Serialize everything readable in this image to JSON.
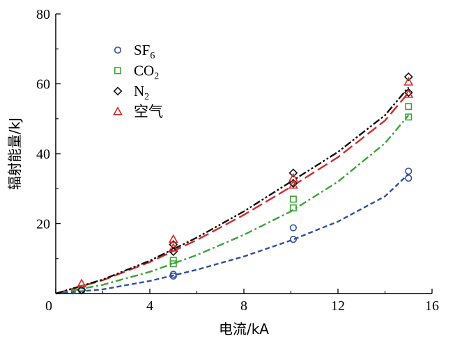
{
  "chart_data": {
    "type": "scatter",
    "title": "",
    "xlabel": "电流/kA",
    "ylabel": "辐射能量/kJ",
    "xlim": [
      0,
      16
    ],
    "ylim": [
      0,
      80
    ],
    "xticks": [
      "0",
      "4",
      "8",
      "12",
      "16"
    ],
    "yticks": [
      "20",
      "40",
      "60",
      "80"
    ],
    "grid": false,
    "legend_position": "top-left",
    "series": [
      {
        "name": "SF",
        "name_sub": "6",
        "marker": "circle",
        "color": "#2f4ea0",
        "line_style": "dashed",
        "points": [
          [
            1.1,
            0.8
          ],
          [
            5.0,
            5.0
          ],
          [
            5.0,
            5.5
          ],
          [
            10.1,
            15.5
          ],
          [
            10.1,
            18.8
          ],
          [
            15.0,
            33.0
          ],
          [
            15.0,
            35.0
          ]
        ],
        "fit": [
          [
            0,
            0
          ],
          [
            2,
            1.2
          ],
          [
            4,
            3.6
          ],
          [
            6,
            6.8
          ],
          [
            8,
            10.6
          ],
          [
            10,
            15.2
          ],
          [
            12,
            20.6
          ],
          [
            14,
            27.8
          ],
          [
            15,
            34.2
          ]
        ]
      },
      {
        "name": "CO",
        "name_sub": "2",
        "marker": "square",
        "color": "#3aa435",
        "line_style": "dash-dot",
        "points": [
          [
            1.1,
            1.5
          ],
          [
            5.0,
            8.5
          ],
          [
            5.0,
            9.5
          ],
          [
            10.1,
            24.5
          ],
          [
            10.1,
            27.0
          ],
          [
            15.0,
            50.5
          ],
          [
            15.0,
            53.5
          ]
        ],
        "fit": [
          [
            0,
            0
          ],
          [
            2,
            2.5
          ],
          [
            4,
            6.2
          ],
          [
            6,
            11.0
          ],
          [
            8,
            16.8
          ],
          [
            10,
            23.5
          ],
          [
            12,
            32.0
          ],
          [
            14,
            43.0
          ],
          [
            15,
            51.0
          ]
        ]
      },
      {
        "name": "N",
        "name_sub": "2",
        "marker": "diamond",
        "color": "#111111",
        "line_style": "dash-dot-dot",
        "points": [
          [
            1.1,
            1.0
          ],
          [
            5.0,
            12.0
          ],
          [
            5.0,
            14.0
          ],
          [
            10.1,
            31.5
          ],
          [
            10.1,
            34.5
          ],
          [
            15.0,
            57.5
          ],
          [
            15.0,
            62.0
          ]
        ],
        "fit": [
          [
            0,
            0
          ],
          [
            2,
            4.0
          ],
          [
            4,
            9.4
          ],
          [
            6,
            16.0
          ],
          [
            8,
            23.5
          ],
          [
            10,
            32.0
          ],
          [
            12,
            40.5
          ],
          [
            14,
            51.0
          ],
          [
            15,
            59.0
          ]
        ]
      },
      {
        "name": "空气",
        "name_sub": "",
        "marker": "triangle",
        "color": "#d42a2a",
        "line_style": "long-dash",
        "points": [
          [
            1.1,
            2.8
          ],
          [
            5.0,
            13.0
          ],
          [
            5.0,
            15.5
          ],
          [
            10.1,
            31.0
          ],
          [
            10.1,
            33.0
          ],
          [
            15.0,
            57.0
          ],
          [
            15.0,
            60.5
          ]
        ],
        "fit": [
          [
            0,
            0
          ],
          [
            2,
            3.8
          ],
          [
            4,
            9.0
          ],
          [
            6,
            15.3
          ],
          [
            8,
            22.5
          ],
          [
            10,
            30.5
          ],
          [
            12,
            39.0
          ],
          [
            14,
            49.5
          ],
          [
            15,
            57.5
          ]
        ]
      }
    ]
  }
}
